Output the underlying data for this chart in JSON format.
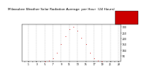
{
  "title": "Milwaukee Weather Solar Radiation Average  per Hour  (24 Hours)",
  "hours": [
    0,
    1,
    2,
    3,
    4,
    5,
    6,
    7,
    8,
    9,
    10,
    11,
    12,
    13,
    14,
    15,
    16,
    17,
    18,
    19,
    20,
    21,
    22,
    23
  ],
  "values": [
    0,
    0,
    0,
    0,
    0,
    2,
    8,
    30,
    80,
    150,
    220,
    280,
    300,
    270,
    210,
    150,
    80,
    30,
    8,
    1,
    0,
    0,
    0,
    0
  ],
  "dot_color": "#cc0000",
  "dot_color2": "#000000",
  "bg_color": "#ffffff",
  "grid_color": "#999999",
  "ylim": [
    0,
    320
  ],
  "xlim": [
    -0.5,
    23.5
  ],
  "legend_color": "#cc0000",
  "title_fontsize": 3.0,
  "tick_fontsize": 2.2,
  "dot_size": 0.5,
  "ytick_vals": [
    50,
    100,
    150,
    200,
    250,
    300
  ],
  "ytick_labels": [
    "50",
    "100",
    "150",
    "200",
    "250",
    "300"
  ],
  "xtick_positions": [
    1,
    3,
    5,
    7,
    9,
    11,
    13,
    15,
    17,
    19,
    21,
    23
  ],
  "xtick_labels": [
    "1",
    "3",
    "5",
    "7",
    "9",
    "11",
    "13",
    "15",
    "17",
    "19",
    "21",
    "23"
  ]
}
